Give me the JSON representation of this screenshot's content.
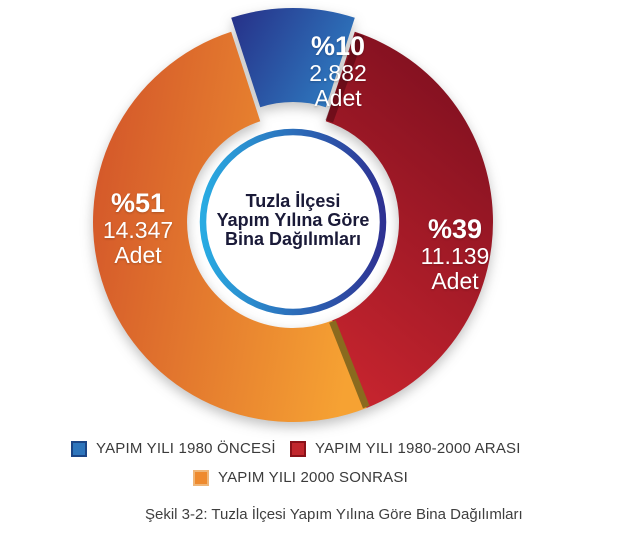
{
  "chart_data": {
    "type": "pie",
    "subtype": "donut-exploded",
    "title": "Tuzla İlçesi Yapım Yılına Göre Bina Dağılımları",
    "center_title_lines": [
      "Tuzla İlçesi",
      "Yapım Yılına Göre",
      "Bina Dağılımları"
    ],
    "unit_label": "Adet",
    "total_percent": 100,
    "series": [
      {
        "name": "YAPIM YILI 1980 ÖNCESİ",
        "percent": 10,
        "percent_label": "%10",
        "value": 2882,
        "count_label": "2.882",
        "exploded": true,
        "gradient": [
          "#262F87",
          "#2E76BD"
        ],
        "legend_fill": "#2E75BC",
        "legend_border": "#1B4586"
      },
      {
        "name": "YAPIM YILI 1980-2000 ARASI",
        "percent": 39,
        "percent_label": "%39",
        "value": 11139,
        "count_label": "11.139",
        "exploded": false,
        "gradient": [
          "#7D0F1F",
          "#C5242E"
        ],
        "legend_fill": "#C1272D",
        "legend_border": "#8A1219"
      },
      {
        "name": "YAPIM YILI 2000 SONRASI",
        "percent": 51,
        "percent_label": "%51",
        "value": 14347,
        "count_label": "14.347",
        "exploded": false,
        "gradient": [
          "#D4582A",
          "#F6A233"
        ],
        "legend_fill": "#EE8A2E",
        "legend_border": "#EFB678"
      }
    ],
    "ring_colors": [
      "#29ABE2",
      "#2E3192"
    ],
    "legend_position": "bottom"
  },
  "caption": "Şekil 3-2: Tuzla İlçesi Yapım Yılına Göre Bina Dağılımları"
}
